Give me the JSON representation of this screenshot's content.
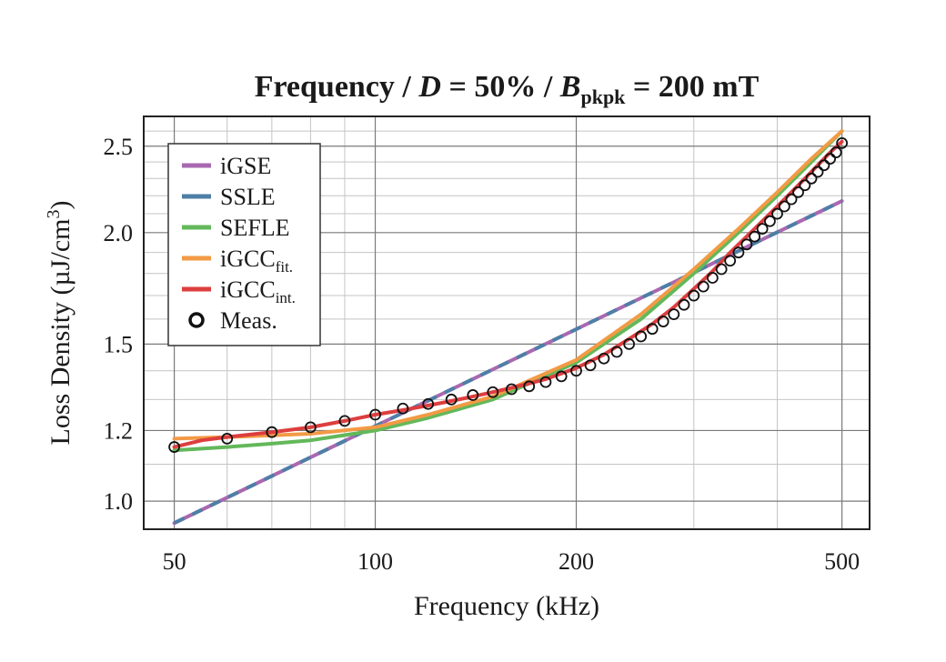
{
  "chart_data": {
    "type": "line",
    "title_parts": {
      "p1": "Frequency / ",
      "d": "D",
      "p2": " = 50% / ",
      "b": "B",
      "b_sub": "pkpk",
      "p3": " = 200 mT"
    },
    "xlabel": "Frequency (kHz)",
    "ylabel": "Loss Density (µJ/cm",
    "ylabel_sup": "3",
    "ylabel_close": ")",
    "x_scale": "log",
    "y_scale": "log",
    "xlim": [
      45,
      550
    ],
    "ylim": [
      0.93,
      2.7
    ],
    "x_ticks": [
      50,
      100,
      200,
      500
    ],
    "x_tick_labels": [
      "50",
      "100",
      "200",
      "500"
    ],
    "y_ticks": [
      1.0,
      1.2,
      1.5,
      2.0,
      2.5
    ],
    "y_tick_labels": [
      "1.0",
      "1.2",
      "1.5",
      "2.0",
      "2.5"
    ],
    "x_minor_grid": [
      60,
      70,
      80,
      90,
      300,
      400
    ],
    "y_minor_grid": [
      1.1,
      1.3,
      1.4,
      1.6,
      1.7,
      1.8,
      1.9,
      2.1,
      2.2,
      2.3,
      2.4,
      2.6
    ],
    "grid": true,
    "legend_position": "top-left",
    "series": [
      {
        "name": "iGSE",
        "name_sub": "",
        "color": "#a968b0",
        "style": "line",
        "dash": "",
        "x": [
          50,
          500
        ],
        "y": [
          0.945,
          2.17
        ]
      },
      {
        "name": "SSLE",
        "name_sub": "",
        "color": "#4e7fa6",
        "style": "line",
        "dash": "12 10",
        "x": [
          50,
          500
        ],
        "y": [
          0.945,
          2.17
        ]
      },
      {
        "name": "SEFLE",
        "name_sub": "",
        "color": "#63b85a",
        "style": "line",
        "dash": "",
        "x": [
          50,
          60,
          70,
          80,
          100,
          120,
          150,
          200,
          250,
          300,
          350,
          400,
          450,
          500
        ],
        "y": [
          1.14,
          1.15,
          1.16,
          1.17,
          1.2,
          1.24,
          1.3,
          1.43,
          1.6,
          1.8,
          2.0,
          2.2,
          2.4,
          2.6
        ]
      },
      {
        "name": "iGCC",
        "name_sub": "fit.",
        "color": "#f29a45",
        "style": "line",
        "dash": "",
        "x": [
          50,
          60,
          70,
          80,
          100,
          120,
          150,
          200,
          250,
          300,
          350,
          400,
          450,
          500
        ],
        "y": [
          1.175,
          1.18,
          1.185,
          1.19,
          1.21,
          1.25,
          1.31,
          1.44,
          1.62,
          1.82,
          2.02,
          2.22,
          2.42,
          2.6
        ]
      },
      {
        "name": "iGCC",
        "name_sub": "int.",
        "color": "#dd3e3e",
        "style": "line",
        "dash": "",
        "x": [
          50,
          55,
          60,
          70,
          80,
          90,
          100,
          110,
          120,
          130,
          140,
          150,
          160,
          170,
          180,
          190,
          200,
          220,
          240,
          260,
          280,
          300,
          320,
          340,
          360,
          380,
          400,
          420,
          440,
          460,
          480,
          500
        ],
        "y": [
          1.15,
          1.17,
          1.18,
          1.195,
          1.21,
          1.23,
          1.25,
          1.265,
          1.28,
          1.295,
          1.31,
          1.325,
          1.34,
          1.355,
          1.37,
          1.39,
          1.41,
          1.46,
          1.52,
          1.58,
          1.65,
          1.73,
          1.81,
          1.9,
          1.98,
          2.06,
          2.14,
          2.22,
          2.3,
          2.38,
          2.46,
          2.53
        ]
      },
      {
        "name": "Meas.",
        "name_sub": "",
        "color": "#111111",
        "style": "marker",
        "dash": "",
        "x": [
          50,
          60,
          70,
          80,
          90,
          100,
          110,
          120,
          130,
          140,
          150,
          160,
          170,
          180,
          190,
          200,
          210,
          220,
          230,
          240,
          250,
          260,
          270,
          280,
          290,
          300,
          310,
          320,
          330,
          340,
          350,
          360,
          370,
          380,
          390,
          400,
          410,
          420,
          430,
          440,
          450,
          460,
          470,
          480,
          490,
          500
        ],
        "y": [
          1.15,
          1.175,
          1.195,
          1.21,
          1.23,
          1.25,
          1.27,
          1.285,
          1.3,
          1.315,
          1.325,
          1.335,
          1.345,
          1.36,
          1.38,
          1.4,
          1.42,
          1.445,
          1.47,
          1.5,
          1.53,
          1.56,
          1.59,
          1.62,
          1.66,
          1.7,
          1.74,
          1.78,
          1.82,
          1.86,
          1.9,
          1.94,
          1.98,
          2.02,
          2.06,
          2.1,
          2.14,
          2.18,
          2.22,
          2.26,
          2.3,
          2.34,
          2.38,
          2.42,
          2.46,
          2.52
        ]
      }
    ]
  }
}
